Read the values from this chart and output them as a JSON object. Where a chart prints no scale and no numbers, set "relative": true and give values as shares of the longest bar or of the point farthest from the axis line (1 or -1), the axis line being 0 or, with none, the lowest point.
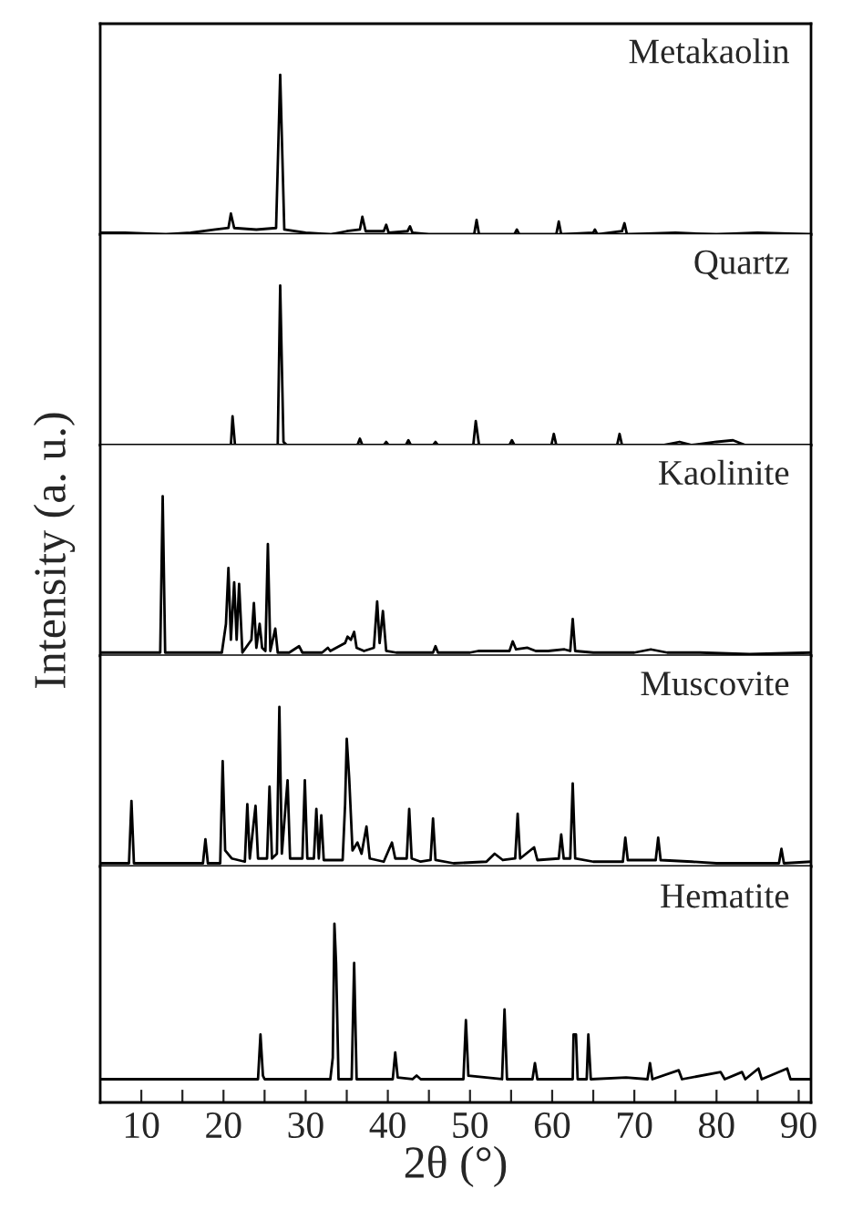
{
  "chart_data": [
    {
      "type": "line",
      "title": "Metakaolin",
      "relative": true,
      "color": "#000000",
      "xlim": [
        5,
        91.5
      ],
      "tick_labels": false,
      "x": [
        5,
        8,
        13,
        16,
        19,
        20.6,
        20.9,
        21.3,
        24,
        26.4,
        26.9,
        27.4,
        30,
        33,
        35,
        36.6,
        36.9,
        37.3,
        39.5,
        39.8,
        40.1,
        42.4,
        42.7,
        43.0,
        45,
        50.5,
        50.8,
        51.1,
        55.4,
        55.7,
        56,
        60.5,
        60.8,
        61.1,
        65,
        65.2,
        65.5,
        68.5,
        68.8,
        69.1,
        75,
        80,
        85,
        91.5
      ],
      "values": [
        0.01,
        0.01,
        0.0,
        0.01,
        0.03,
        0.04,
        0.13,
        0.04,
        0.03,
        0.04,
        1.0,
        0.03,
        0.01,
        0.0,
        0.02,
        0.03,
        0.11,
        0.02,
        0.02,
        0.06,
        0.01,
        0.02,
        0.05,
        0.01,
        0.0,
        0.0,
        0.09,
        0.0,
        0.0,
        0.03,
        0.0,
        0.0,
        0.08,
        0.0,
        0.01,
        0.03,
        0.0,
        0.02,
        0.07,
        0.0,
        0.01,
        0.0,
        0.01,
        0.0
      ]
    },
    {
      "type": "line",
      "title": "Quartz",
      "relative": true,
      "color": "#000000",
      "xlim": [
        5,
        91.5
      ],
      "tick_labels": false,
      "x": [
        5,
        20.9,
        21.1,
        21.4,
        26.6,
        26.9,
        27.3,
        27.7,
        36.3,
        36.6,
        36.9,
        39.5,
        39.8,
        40.1,
        42.2,
        42.5,
        42.8,
        45.5,
        45.8,
        46.1,
        50.4,
        50.7,
        51.1,
        54.8,
        55.1,
        55.4,
        59.9,
        60.2,
        60.5,
        67.9,
        68.2,
        68.5,
        73.5,
        75.5,
        77,
        80,
        82,
        83.5,
        91.5
      ],
      "values": [
        0,
        0,
        0.18,
        0,
        0,
        1.0,
        0.02,
        0,
        0,
        0.04,
        0,
        0,
        0.02,
        0,
        0,
        0.03,
        0,
        0,
        0.02,
        0,
        0,
        0.15,
        0,
        0,
        0.03,
        0,
        0,
        0.07,
        0,
        0,
        0.07,
        0,
        0,
        0.02,
        0,
        0.02,
        0.03,
        0,
        0
      ]
    },
    {
      "type": "line",
      "title": "Kaolinite",
      "ylabel": "Intensity (a. u.)",
      "relative": true,
      "color": "#000000",
      "xlim": [
        5,
        91.5
      ],
      "tick_labels": false,
      "x": [
        5,
        12.3,
        12.6,
        12.9,
        19.8,
        20.3,
        20.6,
        20.9,
        21.3,
        21.6,
        21.9,
        22.3,
        23.4,
        23.7,
        24.0,
        24.4,
        24.7,
        25.1,
        25.4,
        25.7,
        26.3,
        26.6,
        28,
        29.2,
        29.6,
        32,
        32.7,
        33,
        34.8,
        35.1,
        35.5,
        35.9,
        36.2,
        37.1,
        38.3,
        38.7,
        39.0,
        39.4,
        39.8,
        41,
        45.5,
        45.8,
        46.1,
        50,
        51,
        54.8,
        55.2,
        55.6,
        57,
        58,
        59.5,
        61.5,
        62.2,
        62.5,
        62.8,
        65,
        70,
        72,
        74,
        78,
        84,
        91.5
      ],
      "values": [
        0.02,
        0.02,
        1.0,
        0.02,
        0.02,
        0.2,
        0.55,
        0.1,
        0.46,
        0.1,
        0.45,
        0.02,
        0.1,
        0.33,
        0.05,
        0.2,
        0.05,
        0.03,
        0.7,
        0.03,
        0.17,
        0.02,
        0.02,
        0.06,
        0.02,
        0.02,
        0.05,
        0.03,
        0.08,
        0.12,
        0.1,
        0.15,
        0.05,
        0.03,
        0.05,
        0.34,
        0.08,
        0.28,
        0.03,
        0.02,
        0.02,
        0.06,
        0.02,
        0.02,
        0.03,
        0.03,
        0.09,
        0.04,
        0.05,
        0.03,
        0.03,
        0.04,
        0.03,
        0.23,
        0.03,
        0.02,
        0.02,
        0.04,
        0.02,
        0.02,
        0.01,
        0.02
      ]
    },
    {
      "type": "line",
      "title": "Muscovite",
      "relative": true,
      "color": "#000000",
      "xlim": [
        5,
        91.5
      ],
      "tick_labels": false,
      "x": [
        5,
        8.5,
        8.8,
        9.1,
        17.5,
        17.8,
        18.1,
        19.6,
        19.9,
        20.2,
        21.0,
        22.6,
        22.9,
        23.2,
        23.9,
        24.2,
        25.3,
        25.6,
        25.9,
        26.5,
        26.8,
        27.1,
        27.8,
        28.1,
        29.6,
        29.9,
        30.2,
        31.0,
        31.3,
        31.6,
        31.9,
        32.2,
        34.5,
        34.8,
        35.0,
        35.3,
        35.7,
        36.3,
        36.8,
        37.4,
        37.8,
        39.5,
        40.5,
        40.9,
        42.3,
        42.6,
        42.9,
        44,
        45.2,
        45.5,
        45.8,
        48,
        52,
        53,
        54,
        55.5,
        55.8,
        56.1,
        57.8,
        58.2,
        60.8,
        61.1,
        61.4,
        62.2,
        62.5,
        62.8,
        65,
        68.6,
        68.9,
        69.2,
        72.6,
        72.9,
        73.2,
        77,
        80,
        84,
        87.6,
        87.9,
        88.2,
        91.5
      ],
      "values": [
        0.02,
        0.02,
        0.41,
        0.02,
        0.02,
        0.17,
        0.02,
        0.02,
        0.66,
        0.1,
        0.05,
        0.03,
        0.39,
        0.05,
        0.38,
        0.05,
        0.05,
        0.5,
        0.05,
        0.08,
        1.0,
        0.08,
        0.54,
        0.05,
        0.05,
        0.54,
        0.05,
        0.05,
        0.36,
        0.05,
        0.32,
        0.04,
        0.04,
        0.39,
        0.8,
        0.55,
        0.1,
        0.15,
        0.08,
        0.25,
        0.05,
        0.03,
        0.15,
        0.05,
        0.05,
        0.36,
        0.05,
        0.03,
        0.04,
        0.3,
        0.04,
        0.02,
        0.03,
        0.08,
        0.04,
        0.05,
        0.33,
        0.05,
        0.12,
        0.04,
        0.05,
        0.2,
        0.05,
        0.05,
        0.52,
        0.05,
        0.03,
        0.03,
        0.18,
        0.04,
        0.04,
        0.18,
        0.04,
        0.03,
        0.02,
        0.02,
        0.02,
        0.11,
        0.02,
        0.03
      ]
    },
    {
      "type": "line",
      "title": "Hematite",
      "xlabel": "2θ (°)",
      "relative": true,
      "color": "#000000",
      "xlim": [
        5,
        91.5
      ],
      "tick_labels": "x",
      "xticks": [
        10,
        {
          "value": 15,
          "label": null
        },
        20,
        {
          "value": 25,
          "label": null
        },
        30,
        {
          "value": 35,
          "label": null
        },
        40,
        {
          "value": 45,
          "label": null
        },
        50,
        {
          "value": 55,
          "label": null
        },
        60,
        {
          "value": 65,
          "label": null
        },
        70,
        {
          "value": 75,
          "label": null
        },
        80,
        {
          "value": 85,
          "label": null
        },
        90
      ],
      "x": [
        5,
        24.2,
        24.5,
        24.8,
        25,
        33.0,
        33.3,
        33.5,
        33.7,
        34,
        35.6,
        35.9,
        36.2,
        40.6,
        40.9,
        41.2,
        43,
        43.5,
        44,
        49.2,
        49.5,
        49.8,
        53.9,
        54.2,
        54.5,
        57.6,
        57.9,
        58.2,
        62.5,
        62.6,
        62.9,
        63.1,
        64.2,
        64.4,
        64.7,
        69,
        71.6,
        71.9,
        72.2,
        75.4,
        75.8,
        80.5,
        81,
        83.1,
        83.5,
        85.1,
        85.5,
        88.6,
        89,
        91.5
      ],
      "values": [
        0.13,
        0.13,
        0.38,
        0.15,
        0.13,
        0.13,
        0.25,
        1.0,
        0.78,
        0.13,
        0.13,
        0.78,
        0.13,
        0.13,
        0.28,
        0.14,
        0.13,
        0.15,
        0.13,
        0.13,
        0.46,
        0.15,
        0.13,
        0.52,
        0.13,
        0.13,
        0.22,
        0.13,
        0.13,
        0.38,
        0.38,
        0.13,
        0.13,
        0.38,
        0.13,
        0.14,
        0.13,
        0.22,
        0.13,
        0.18,
        0.13,
        0.17,
        0.13,
        0.17,
        0.13,
        0.19,
        0.13,
        0.19,
        0.13,
        0.13
      ]
    }
  ]
}
